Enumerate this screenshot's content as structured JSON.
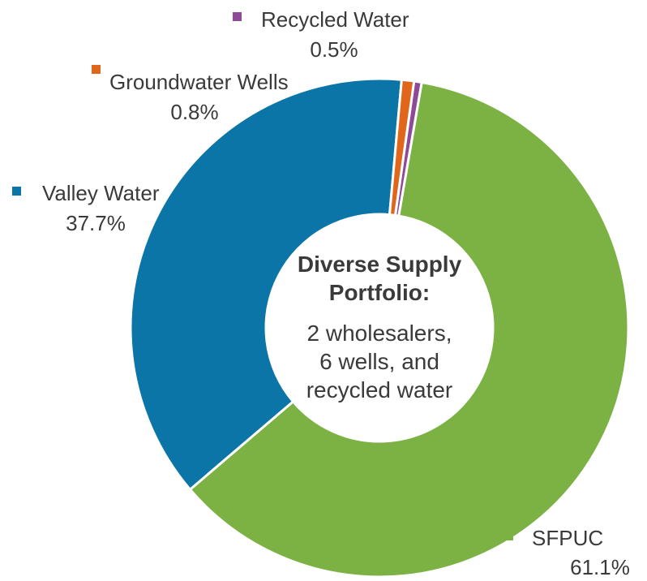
{
  "chart_data": {
    "type": "pie",
    "donut": true,
    "categories": [
      "SFPUC",
      "Valley Water",
      "Groundwater Wells",
      "Recycled Water"
    ],
    "values": [
      61.1,
      37.7,
      0.8,
      0.5
    ],
    "value_labels": [
      "61.1%",
      "37.7%",
      "0.8%",
      "0.5%"
    ],
    "colors": [
      "#7cb143",
      "#0a75a6",
      "#e0661b",
      "#8e4a97"
    ],
    "legend": "inline labels with colored square markers",
    "center": {
      "title_lines": [
        "Diverse Supply",
        "Portfolio:"
      ],
      "text_lines": [
        "2 wholesalers,",
        "6 wells, and",
        "recycled water"
      ]
    }
  }
}
